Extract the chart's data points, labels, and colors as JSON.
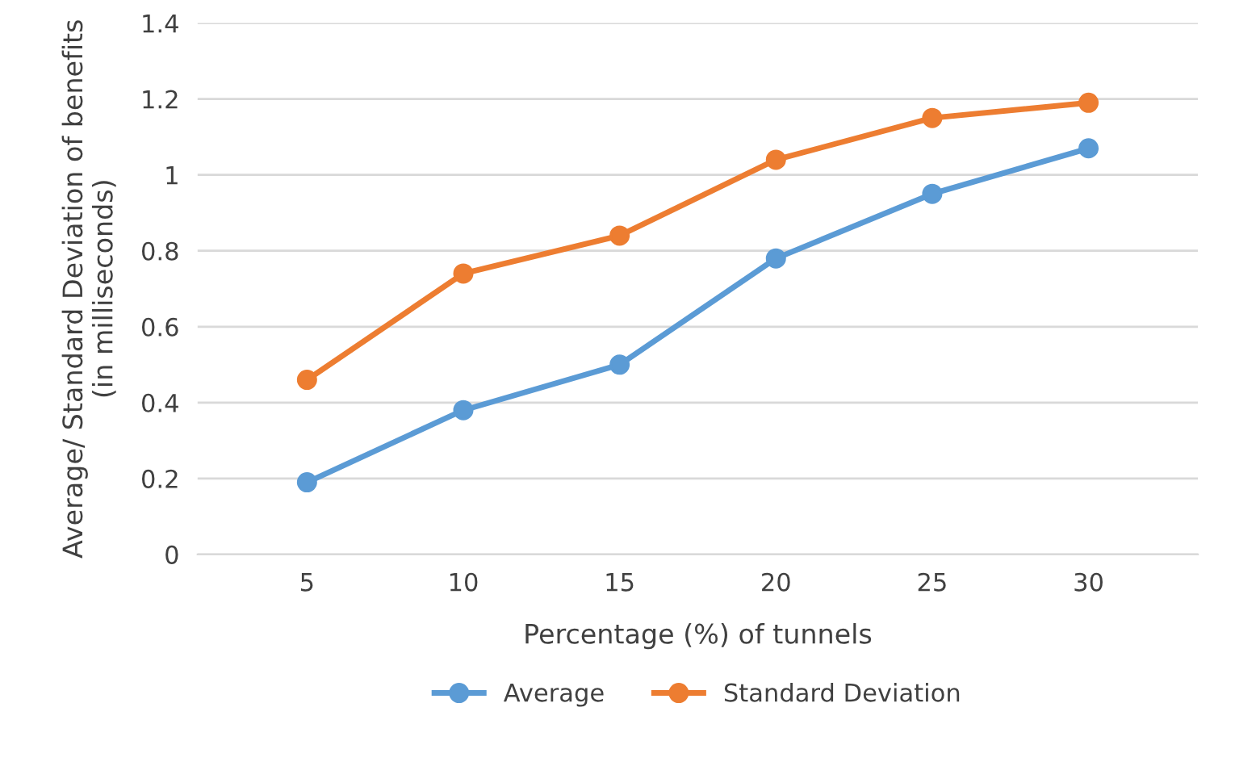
{
  "chart_data": {
    "type": "line",
    "xlabel": "Percentage (%) of tunnels",
    "ylabel": "Average/ Standard Deviation of benefits\n(in milliseconds)",
    "categories": [
      "5",
      "10",
      "15",
      "20",
      "25",
      "30"
    ],
    "series": [
      {
        "name": "Average",
        "color": "#5b9bd5",
        "values": [
          0.19,
          0.38,
          0.5,
          0.78,
          0.95,
          1.07
        ]
      },
      {
        "name": "Standard Deviation",
        "color": "#ed7d31",
        "values": [
          0.46,
          0.74,
          0.84,
          1.04,
          1.15,
          1.19
        ]
      }
    ],
    "ylim": [
      0,
      1.4
    ],
    "yticks": [
      0,
      0.2,
      0.4,
      0.6,
      0.8,
      1,
      1.2,
      1.4
    ],
    "grid": "y",
    "legend": "bottom",
    "marker": "circle",
    "line_style": "solid"
  }
}
